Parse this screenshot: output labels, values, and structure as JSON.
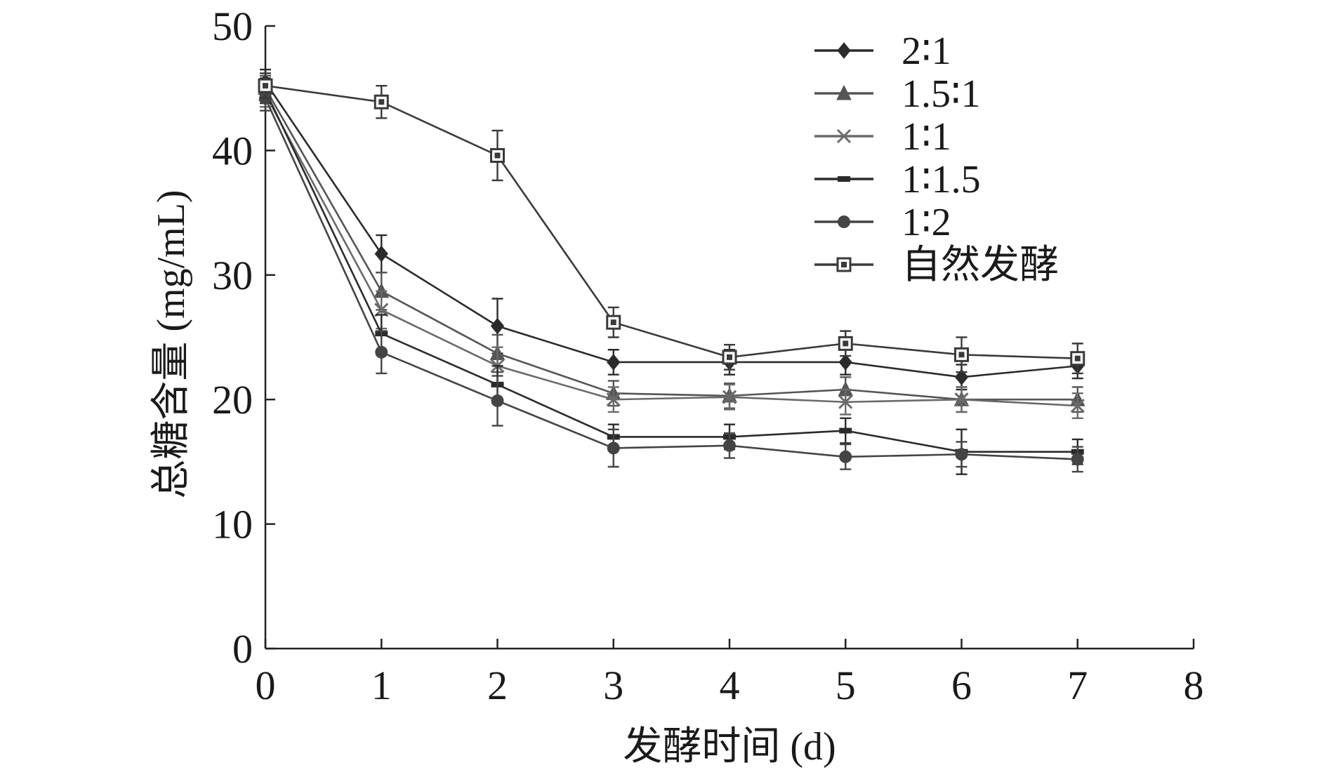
{
  "chart_data": {
    "type": "line",
    "xlabel": "发酵时间 (d)",
    "ylabel": "总糖含量 (mg/mL)",
    "xlim": [
      0,
      8
    ],
    "ylim": [
      0,
      50
    ],
    "xticks": [
      0,
      1,
      2,
      3,
      4,
      5,
      6,
      7,
      8
    ],
    "yticks": [
      0,
      10,
      20,
      30,
      40,
      50
    ],
    "grid": false,
    "legend_position": "top-right",
    "x": [
      0,
      1,
      2,
      3,
      4,
      5,
      6,
      7
    ],
    "series": [
      {
        "name": "2∶1",
        "marker": "diamond",
        "color": "#2b2b2b",
        "values": [
          45.5,
          31.7,
          25.9,
          23.0,
          23.0,
          23.0,
          21.8,
          22.7
        ],
        "errors": [
          1.0,
          1.5,
          2.2,
          1.0,
          1.0,
          1.0,
          1.0,
          1.0
        ]
      },
      {
        "name": "1.5∶1",
        "marker": "triangle",
        "color": "#555555",
        "values": [
          45.0,
          28.7,
          23.7,
          20.5,
          20.3,
          20.8,
          20.0,
          20.0
        ],
        "errors": [
          1.0,
          1.5,
          1.5,
          1.0,
          1.0,
          1.0,
          1.0,
          1.0
        ]
      },
      {
        "name": "1∶1",
        "marker": "x",
        "color": "#6a6a6a",
        "values": [
          44.5,
          27.2,
          22.7,
          20.0,
          20.2,
          19.8,
          20.0,
          19.5
        ],
        "errors": [
          1.0,
          1.5,
          1.5,
          1.0,
          1.0,
          1.0,
          1.0,
          1.0
        ]
      },
      {
        "name": "1∶1.5",
        "marker": "bar",
        "color": "#2b2b2b",
        "values": [
          44.8,
          25.3,
          21.2,
          17.0,
          17.0,
          17.5,
          15.8,
          15.8
        ],
        "errors": [
          1.0,
          1.5,
          1.5,
          1.0,
          1.0,
          1.0,
          1.8,
          1.0
        ]
      },
      {
        "name": "1∶2",
        "marker": "circle",
        "color": "#444444",
        "values": [
          44.2,
          23.8,
          19.9,
          16.1,
          16.3,
          15.4,
          15.6,
          15.2
        ],
        "errors": [
          1.0,
          1.7,
          2.0,
          1.5,
          1.0,
          1.0,
          1.0,
          1.0
        ]
      },
      {
        "name": "自然发酵",
        "marker": "square",
        "color": "#3a3a3a",
        "values": [
          45.2,
          43.9,
          39.6,
          26.2,
          23.4,
          24.5,
          23.6,
          23.3
        ],
        "errors": [
          1.0,
          1.3,
          2.0,
          1.2,
          1.0,
          1.0,
          1.4,
          1.2
        ]
      }
    ]
  }
}
